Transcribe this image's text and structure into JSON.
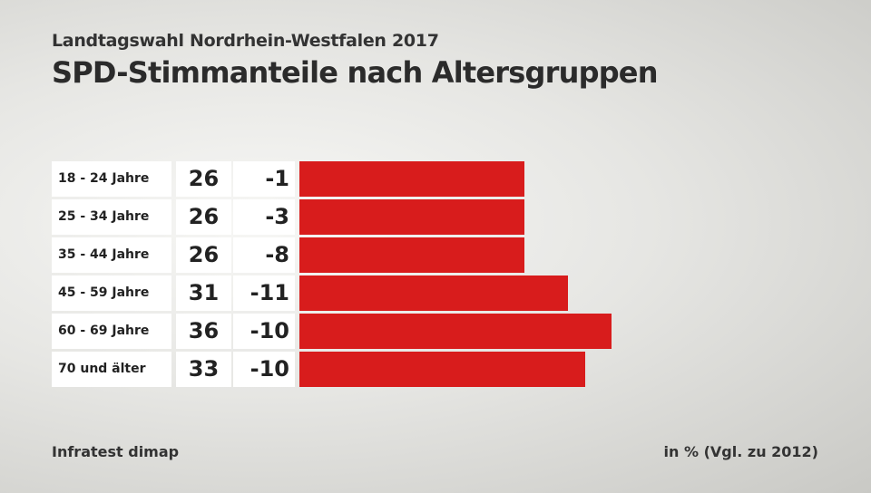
{
  "header": {
    "subtitle": "Landtagswahl Nordrhein-Westfalen 2017",
    "title": "SPD-Stimmanteile nach Altersgruppen"
  },
  "chart_data": {
    "type": "bar",
    "orientation": "horizontal",
    "title": "SPD-Stimmanteile nach Altersgruppen",
    "subtitle": "Landtagswahl Nordrhein-Westfalen 2017",
    "categories": [
      "18 - 24 Jahre",
      "25 - 34 Jahre",
      "35 - 44 Jahre",
      "45 - 59 Jahre",
      "60 - 69 Jahre",
      "70 und älter"
    ],
    "series": [
      {
        "name": "Stimmanteil",
        "values": [
          26,
          26,
          26,
          31,
          36,
          33
        ]
      },
      {
        "name": "Vgl. zu 2012",
        "values": [
          -1,
          -3,
          -8,
          -11,
          -10,
          -10
        ]
      }
    ],
    "unit_label": "in % (Vgl. zu 2012)",
    "xlim": [
      0,
      36
    ],
    "bar_color": "#d81c1c",
    "rows": [
      {
        "label": "18 - 24 Jahre",
        "value": "26",
        "diff": "-1"
      },
      {
        "label": "25 - 34 Jahre",
        "value": "26",
        "diff": "-3"
      },
      {
        "label": "35 - 44 Jahre",
        "value": "26",
        "diff": "-8"
      },
      {
        "label": "45 - 59 Jahre",
        "value": "31",
        "diff": "-11"
      },
      {
        "label": "60 - 69 Jahre",
        "value": "36",
        "diff": "-10"
      },
      {
        "label": "70 und älter",
        "value": "33",
        "diff": "-10"
      }
    ]
  },
  "footer": {
    "source": "Infratest dimap",
    "unit": "in % (Vgl. zu 2012)"
  }
}
